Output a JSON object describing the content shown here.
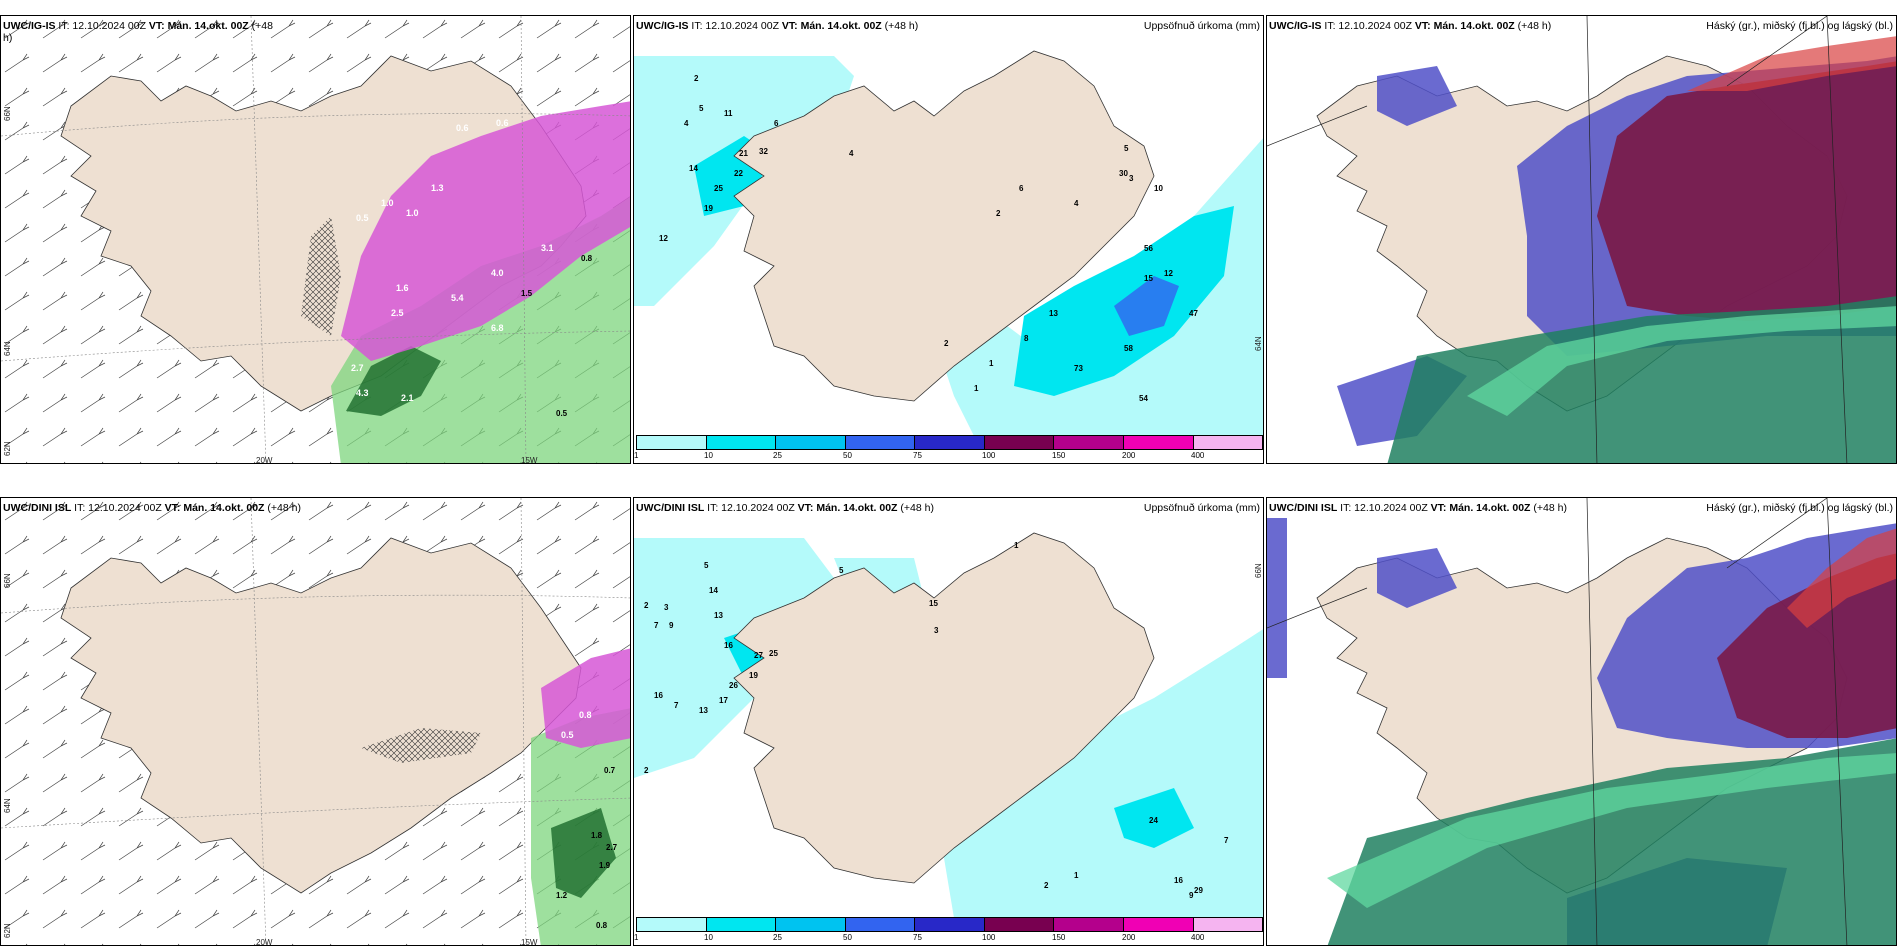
{
  "panels": [
    {
      "id": "top-left",
      "model": "UWC/IG-IS",
      "it_label": "IT: 12.10.2024 00Z",
      "vt_label": "VT: Mán. 14.okt. 00Z",
      "lead": "(+48",
      "lead_wrap": "h)",
      "right_title": "",
      "lat_labels": [
        "66N",
        "64N",
        "62N"
      ],
      "lon_labels": [
        "20W",
        "15W"
      ],
      "values": [
        "0.6",
        "1.0",
        "1.3",
        "1.6",
        "0.5",
        "2.5",
        "3.1",
        "4.0",
        "5.4",
        "6.8",
        "4.3",
        "2.7",
        "0.8",
        "0.5",
        "1.5",
        "2.1",
        "0.6",
        "1.0"
      ]
    },
    {
      "id": "top-middle",
      "model": "UWC/IG-IS",
      "it_label": "IT: 12.10.2024 00Z",
      "vt_label": "VT: Mán. 14.okt. 00Z",
      "lead": "(+48 h)",
      "lead_wrap": "",
      "right_title": "Uppsöfnuð úrkoma (mm)",
      "lat_labels": [
        "64N"
      ],
      "lon_labels": [],
      "values": [
        "2",
        "4",
        "5",
        "11",
        "21",
        "32",
        "22",
        "25",
        "19",
        "14",
        "12",
        "6",
        "4",
        "1",
        "2",
        "8",
        "13",
        "15",
        "12",
        "47",
        "58",
        "73",
        "54",
        "56",
        "30",
        "10",
        "3",
        "5",
        "4",
        "6",
        "2",
        "1"
      ]
    },
    {
      "id": "top-right",
      "model": "UWC/IG-IS",
      "it_label": "IT: 12.10.2024 00Z",
      "vt_label": "VT: Mán. 14.okt. 00Z",
      "lead": "(+48 h)",
      "lead_wrap": "",
      "right_title": "Háský (gr.), miðský (fj.bl.) og lágský (bl.)",
      "lat_labels": [],
      "lon_labels": [],
      "values": []
    },
    {
      "id": "bottom-left",
      "model": "UWC/DINI ISL",
      "it_label": "IT: 12.10.2024 00Z",
      "vt_label": "VT: Mán. 14.okt. 00Z",
      "lead": "(+48 h)",
      "lead_wrap": "",
      "right_title": "",
      "lat_labels": [
        "66N",
        "64N",
        "62N"
      ],
      "lon_labels": [
        "20W",
        "15W"
      ],
      "values": [
        "0.7",
        "1.8",
        "2.7",
        "1.9",
        "1.2",
        "0.8",
        "0.5",
        "0.8"
      ]
    },
    {
      "id": "bottom-middle",
      "model": "UWC/DINI ISL",
      "it_label": "IT: 12.10.2024 00Z",
      "vt_label": "VT: Mán. 14.okt. 00Z",
      "lead": "(+48 h)",
      "lead_wrap": "",
      "right_title": "Uppsöfnuð úrkoma (mm)",
      "lat_labels": [
        "66N"
      ],
      "lon_labels": [],
      "values": [
        "5",
        "7",
        "2",
        "3",
        "9",
        "14",
        "13",
        "16",
        "27",
        "25",
        "19",
        "26",
        "17",
        "13",
        "16",
        "7",
        "2",
        "24",
        "7",
        "16",
        "29",
        "9",
        "2",
        "1",
        "3",
        "15",
        "5",
        "1"
      ]
    },
    {
      "id": "bottom-right",
      "model": "UWC/DINI ISL",
      "it_label": "IT: 12.10.2024 00Z",
      "vt_label": "VT: Mán. 14.okt. 00Z",
      "lead": "(+48 h)",
      "lead_wrap": "",
      "right_title": "Háský (gr.), miðský (fj.bl.) og lágský (bl.)",
      "lat_labels": [],
      "lon_labels": [],
      "values": []
    }
  ],
  "colorbar": {
    "ticks": [
      "1",
      "10",
      "25",
      "50",
      "75",
      "100",
      "150",
      "200",
      "400"
    ],
    "colors": [
      "#b4fafa",
      "#00e6f0",
      "#00c3f0",
      "#3264f0",
      "#2828c8",
      "#780050",
      "#b4008c",
      "#f000b4",
      "#f5b4f0"
    ]
  },
  "colors": {
    "land": "#eee0d2",
    "precip_green": "#7ed67e",
    "precip_magenta": "#d657d6",
    "high_cloud": "#7a1a48",
    "mid_cloud": "#5050c8",
    "low_cloud": "#208060"
  }
}
